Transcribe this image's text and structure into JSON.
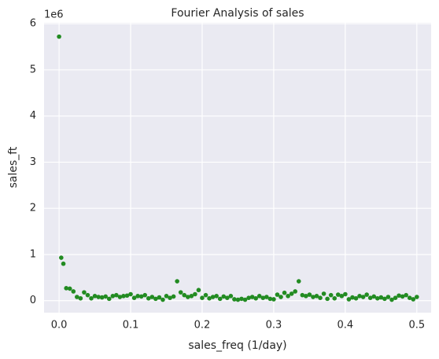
{
  "chart_data": {
    "type": "scatter",
    "title": "Fourier Analysis of sales",
    "xlabel": "sales_freq (1/day)",
    "ylabel": "sales_ft",
    "y_offset_label": "1e6",
    "x": [
      0,
      0.003,
      0.006,
      0.01,
      0.015,
      0.02,
      0.025,
      0.03,
      0.035,
      0.04,
      0.045,
      0.05,
      0.055,
      0.06,
      0.065,
      0.07,
      0.075,
      0.08,
      0.085,
      0.09,
      0.095,
      0.1,
      0.105,
      0.11,
      0.115,
      0.12,
      0.125,
      0.13,
      0.135,
      0.14,
      0.145,
      0.15,
      0.155,
      0.16,
      0.165,
      0.17,
      0.175,
      0.18,
      0.185,
      0.19,
      0.195,
      0.2,
      0.205,
      0.21,
      0.215,
      0.22,
      0.225,
      0.23,
      0.235,
      0.24,
      0.245,
      0.25,
      0.255,
      0.26,
      0.265,
      0.27,
      0.275,
      0.28,
      0.285,
      0.29,
      0.295,
      0.3,
      0.305,
      0.31,
      0.315,
      0.32,
      0.325,
      0.33,
      0.335,
      0.34,
      0.345,
      0.35,
      0.355,
      0.36,
      0.365,
      0.37,
      0.375,
      0.38,
      0.385,
      0.39,
      0.395,
      0.4,
      0.405,
      0.41,
      0.415,
      0.42,
      0.425,
      0.43,
      0.435,
      0.44,
      0.445,
      0.45,
      0.455,
      0.46,
      0.465,
      0.47,
      0.475,
      0.48,
      0.485,
      0.49,
      0.495,
      0.5
    ],
    "values": [
      5.72,
      0.93,
      0.8,
      0.27,
      0.26,
      0.2,
      0.08,
      0.05,
      0.18,
      0.12,
      0.05,
      0.1,
      0.08,
      0.07,
      0.09,
      0.04,
      0.1,
      0.12,
      0.08,
      0.1,
      0.11,
      0.14,
      0.06,
      0.1,
      0.09,
      0.12,
      0.05,
      0.08,
      0.04,
      0.07,
      0.02,
      0.1,
      0.06,
      0.09,
      0.42,
      0.18,
      0.12,
      0.08,
      0.1,
      0.14,
      0.23,
      0.06,
      0.12,
      0.05,
      0.08,
      0.1,
      0.04,
      0.09,
      0.06,
      0.1,
      0.03,
      0.02,
      0.04,
      0.02,
      0.06,
      0.08,
      0.05,
      0.1,
      0.06,
      0.08,
      0.04,
      0.03,
      0.13,
      0.08,
      0.17,
      0.1,
      0.15,
      0.2,
      0.42,
      0.12,
      0.1,
      0.13,
      0.08,
      0.1,
      0.06,
      0.15,
      0.04,
      0.12,
      0.05,
      0.13,
      0.1,
      0.14,
      0.03,
      0.07,
      0.05,
      0.1,
      0.08,
      0.13,
      0.06,
      0.09,
      0.05,
      0.07,
      0.04,
      0.08,
      0.02,
      0.06,
      0.11,
      0.09,
      0.12,
      0.06,
      0.03,
      0.08
    ],
    "color": "#228b22",
    "xlim": [
      -0.021,
      0.52
    ],
    "xticks": [
      {
        "value": 0,
        "label": "0.0"
      },
      0.1,
      0.2,
      0.3,
      0.4,
      0.5
    ],
    "ylim": [
      -0.26,
      6.02
    ],
    "yticks": [
      0,
      1,
      2,
      3,
      4,
      5,
      6
    ],
    "grid": true
  }
}
